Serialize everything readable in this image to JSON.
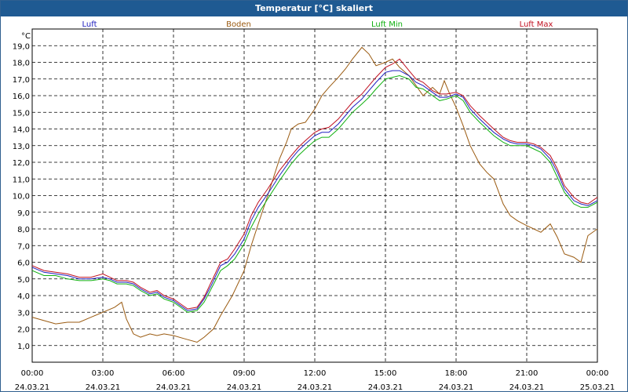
{
  "window": {
    "title": "Temperatur [°C] skaliert"
  },
  "chart_data": {
    "type": "line",
    "title": "Temperatur [°C] skaliert",
    "ylabel": "°C",
    "xlabel": "",
    "ylim": [
      0,
      20
    ],
    "xlim": [
      0,
      24
    ],
    "grid": true,
    "y_ticks": [
      "1,0",
      "2,0",
      "3,0",
      "4,0",
      "5,0",
      "6,0",
      "7,0",
      "8,0",
      "9,0",
      "10,0",
      "11,0",
      "12,0",
      "13,0",
      "14,0",
      "15,0",
      "16,0",
      "17,0",
      "18,0",
      "19,0"
    ],
    "x_ticks": [
      {
        "time": "00:00",
        "date": "24.03.21"
      },
      {
        "time": "03:00",
        "date": "24.03.21"
      },
      {
        "time": "06:00",
        "date": "24.03.21"
      },
      {
        "time": "09:00",
        "date": "24.03.21"
      },
      {
        "time": "12:00",
        "date": "24.03.21"
      },
      {
        "time": "15:00",
        "date": "24.03.21"
      },
      {
        "time": "18:00",
        "date": "24.03.21"
      },
      {
        "time": "21:00",
        "date": "24.03.21"
      },
      {
        "time": "00:00",
        "date": "25.03.21"
      }
    ],
    "legend": [
      {
        "name": "Luft",
        "color": "#2020c0"
      },
      {
        "name": "Boden",
        "color": "#9a5a10"
      },
      {
        "name": "Luft Min",
        "color": "#10b010"
      },
      {
        "name": "Luft Max",
        "color": "#c01020"
      }
    ],
    "series": [
      {
        "name": "Boden",
        "color": "#9a5a10",
        "x": [
          0,
          0.5,
          1,
          1.5,
          2,
          2.5,
          3,
          3.5,
          3.8,
          4,
          4.3,
          4.6,
          5,
          5.3,
          5.6,
          6,
          6.5,
          7,
          7.3,
          7.7,
          8,
          8.5,
          9,
          9.3,
          9.6,
          10,
          10.5,
          10.8,
          11,
          11.3,
          11.6,
          12,
          12.3,
          12.6,
          13,
          13.3,
          13.6,
          14,
          14.3,
          14.6,
          15,
          15.3,
          15.6,
          16,
          16.3,
          16.6,
          17,
          17.3,
          17.5,
          17.7,
          18,
          18.3,
          18.6,
          19,
          19.3,
          19.6,
          20,
          20.3,
          20.6,
          21,
          21.3,
          21.6,
          22,
          22.3,
          22.6,
          23,
          23.3,
          23.6,
          24
        ],
        "values": [
          2.7,
          2.5,
          2.3,
          2.4,
          2.4,
          2.7,
          3.0,
          3.3,
          3.6,
          2.6,
          1.7,
          1.5,
          1.7,
          1.6,
          1.7,
          1.6,
          1.4,
          1.2,
          1.5,
          2.0,
          2.8,
          4.0,
          5.5,
          7.0,
          8.3,
          10.0,
          12.2,
          13.2,
          14.0,
          14.3,
          14.4,
          15.2,
          16.0,
          16.5,
          17.1,
          17.6,
          18.2,
          18.9,
          18.5,
          17.8,
          18.0,
          18.2,
          17.7,
          17.2,
          16.6,
          16.0,
          16.5,
          16.1,
          16.9,
          16.2,
          15.3,
          14.2,
          13.0,
          11.9,
          11.4,
          11.0,
          9.5,
          8.8,
          8.5,
          8.2,
          8.0,
          7.8,
          8.3,
          7.5,
          6.5,
          6.3,
          6.0,
          7.6,
          8.0
        ]
      },
      {
        "name": "Luft Min",
        "color": "#10b010",
        "x": [
          0,
          0.5,
          1,
          1.5,
          2,
          2.5,
          3,
          3.3,
          3.6,
          4,
          4.3,
          4.6,
          5,
          5.3,
          5.6,
          6,
          6.3,
          6.6,
          7,
          7.3,
          7.6,
          8,
          8.3,
          8.6,
          9,
          9.3,
          9.6,
          10,
          10.5,
          11,
          11.3,
          11.6,
          12,
          12.3,
          12.6,
          13,
          13.3,
          13.6,
          14,
          14.3,
          14.6,
          15,
          15.3,
          15.6,
          16,
          16.3,
          16.6,
          17,
          17.3,
          17.6,
          18,
          18.3,
          18.6,
          19,
          19.3,
          19.6,
          20,
          20.3,
          20.6,
          21,
          21.3,
          21.6,
          22,
          22.3,
          22.6,
          23,
          23.3,
          23.6,
          24
        ],
        "values": [
          5.5,
          5.2,
          5.2,
          5.0,
          4.9,
          4.9,
          5.0,
          4.9,
          4.7,
          4.7,
          4.6,
          4.3,
          4.0,
          4.1,
          3.8,
          3.6,
          3.3,
          3.0,
          3.1,
          3.6,
          4.4,
          5.5,
          5.8,
          6.2,
          7.1,
          8.1,
          8.9,
          9.8,
          10.9,
          11.9,
          12.4,
          12.8,
          13.3,
          13.5,
          13.5,
          14.0,
          14.5,
          15.0,
          15.5,
          15.9,
          16.4,
          17.0,
          17.1,
          17.2,
          17.0,
          16.5,
          16.4,
          16.0,
          15.7,
          15.8,
          16.0,
          15.7,
          15.0,
          14.4,
          14.0,
          13.6,
          13.2,
          13.0,
          13.0,
          13.0,
          12.8,
          12.6,
          12.0,
          11.1,
          10.2,
          9.5,
          9.3,
          9.3,
          9.6
        ]
      },
      {
        "name": "Luft",
        "color": "#2020c0",
        "x": [
          0,
          0.5,
          1,
          1.5,
          2,
          2.5,
          3,
          3.3,
          3.6,
          4,
          4.3,
          4.6,
          5,
          5.3,
          5.6,
          6,
          6.3,
          6.6,
          7,
          7.3,
          7.6,
          8,
          8.3,
          8.6,
          9,
          9.3,
          9.6,
          10,
          10.5,
          11,
          11.3,
          11.6,
          12,
          12.3,
          12.6,
          13,
          13.3,
          13.6,
          14,
          14.3,
          14.6,
          15,
          15.3,
          15.6,
          16,
          16.3,
          16.6,
          17,
          17.3,
          17.6,
          18,
          18.3,
          18.6,
          19,
          19.3,
          19.6,
          20,
          20.3,
          20.6,
          21,
          21.3,
          21.6,
          22,
          22.3,
          22.6,
          23,
          23.3,
          23.6,
          24
        ],
        "values": [
          5.7,
          5.4,
          5.3,
          5.2,
          5.0,
          5.0,
          5.1,
          5.0,
          4.8,
          4.8,
          4.7,
          4.4,
          4.1,
          4.2,
          3.9,
          3.7,
          3.4,
          3.1,
          3.2,
          3.8,
          4.6,
          5.8,
          6.0,
          6.5,
          7.4,
          8.5,
          9.3,
          10.1,
          11.2,
          12.2,
          12.7,
          13.1,
          13.6,
          13.8,
          13.8,
          14.3,
          14.8,
          15.3,
          15.8,
          16.3,
          16.8,
          17.4,
          17.5,
          17.5,
          17.2,
          16.8,
          16.6,
          16.2,
          15.9,
          15.9,
          16.1,
          15.9,
          15.2,
          14.6,
          14.2,
          13.8,
          13.4,
          13.2,
          13.1,
          13.1,
          13.0,
          12.8,
          12.2,
          11.4,
          10.4,
          9.7,
          9.5,
          9.4,
          9.7
        ]
      },
      {
        "name": "Luft Max",
        "color": "#c01020",
        "x": [
          0,
          0.5,
          1,
          1.5,
          2,
          2.5,
          3,
          3.3,
          3.6,
          4,
          4.3,
          4.6,
          5,
          5.3,
          5.6,
          6,
          6.3,
          6.6,
          7,
          7.3,
          7.6,
          8,
          8.3,
          8.6,
          9,
          9.3,
          9.6,
          10,
          10.5,
          11,
          11.3,
          11.6,
          12,
          12.3,
          12.6,
          13,
          13.3,
          13.6,
          14,
          14.3,
          14.6,
          15,
          15.3,
          15.6,
          16,
          16.3,
          16.6,
          17,
          17.3,
          17.6,
          18,
          18.3,
          18.6,
          19,
          19.3,
          19.6,
          20,
          20.3,
          20.6,
          21,
          21.3,
          21.6,
          22,
          22.3,
          22.6,
          23,
          23.3,
          23.6,
          24
        ],
        "values": [
          5.8,
          5.5,
          5.4,
          5.3,
          5.1,
          5.1,
          5.3,
          5.1,
          4.9,
          4.9,
          4.8,
          4.5,
          4.2,
          4.3,
          4.0,
          3.8,
          3.5,
          3.2,
          3.3,
          3.9,
          4.8,
          6.0,
          6.2,
          6.8,
          7.7,
          8.8,
          9.6,
          10.4,
          11.5,
          12.4,
          12.9,
          13.3,
          13.8,
          14.0,
          14.1,
          14.6,
          15.1,
          15.6,
          16.1,
          16.6,
          17.1,
          17.7,
          17.9,
          18.2,
          17.5,
          17.0,
          16.8,
          16.3,
          16.1,
          16.1,
          16.2,
          16.0,
          15.4,
          14.8,
          14.4,
          14.0,
          13.5,
          13.3,
          13.2,
          13.2,
          13.1,
          12.9,
          12.4,
          11.6,
          10.6,
          9.9,
          9.6,
          9.5,
          9.9
        ]
      }
    ]
  }
}
